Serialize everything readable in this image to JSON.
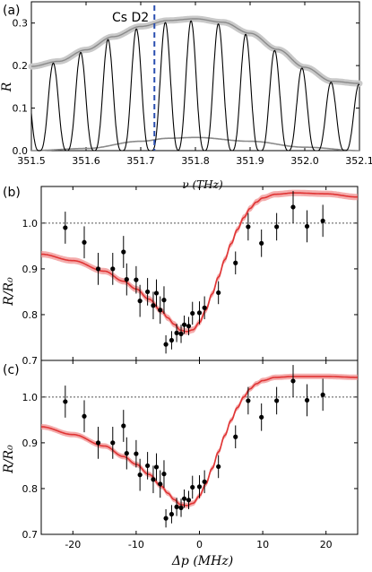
{
  "colors": {
    "axis": "#000000",
    "fringe": "#000000",
    "envelope": "#8a8a8a",
    "envelope_band": "#c9c9c9",
    "marker_line": "#2a4fb0",
    "fit_line": "#e03434",
    "fit_band": "#f08a8a",
    "points": "#000000",
    "reference_line": "#555555"
  },
  "chart_data": [
    {
      "panel_label": "(a)",
      "type": "line",
      "xlabel": "ν (THz)",
      "ylabel": "R",
      "xlim": [
        351.5,
        352.1
      ],
      "ylim": [
        0,
        0.35
      ],
      "x_ticks": [
        "351.5",
        "351.6",
        "351.7",
        "351.8",
        "351.9",
        "352.0",
        "352.1"
      ],
      "y_ticks": [
        "0.0",
        "0.1",
        "0.2",
        "0.3"
      ],
      "annotation": "Cs D2",
      "marker_x": 351.725,
      "fringe_peaks_x": [
        351.54,
        351.59,
        351.64,
        351.692,
        351.745,
        351.792,
        351.842,
        351.892,
        351.945,
        351.995,
        352.048
      ],
      "fringe_period": 0.051,
      "upper_envelope": {
        "x": [
          351.5,
          351.55,
          351.6,
          351.65,
          351.7,
          351.75,
          351.8,
          351.85,
          351.9,
          351.95,
          352.0,
          352.05,
          352.1
        ],
        "y": [
          0.198,
          0.21,
          0.237,
          0.268,
          0.292,
          0.306,
          0.31,
          0.302,
          0.276,
          0.238,
          0.196,
          0.163,
          0.158
        ]
      },
      "lower_envelope": {
        "x": [
          351.5,
          351.6,
          351.7,
          351.75,
          351.8,
          351.9,
          352.0,
          352.1
        ],
        "y": [
          0.0,
          0.005,
          0.022,
          0.029,
          0.031,
          0.022,
          0.008,
          0.0
        ]
      }
    },
    {
      "panel_label": "(b)",
      "type": "scatter",
      "xlabel": "",
      "ylabel": "R/R₀",
      "xlim": [
        -25,
        25
      ],
      "ylim": [
        0.7,
        1.08
      ],
      "x_ticks": [
        "-20",
        "-10",
        "0",
        "10",
        "20"
      ],
      "y_ticks": [
        "0.7",
        "0.8",
        "0.9",
        "1.0"
      ],
      "reference_y": 1.0,
      "points": [
        {
          "x": -21.2,
          "y": 0.99,
          "err": 0.035
        },
        {
          "x": -18.2,
          "y": 0.958,
          "err": 0.035
        },
        {
          "x": -16.0,
          "y": 0.9,
          "err": 0.035
        },
        {
          "x": -13.7,
          "y": 0.9,
          "err": 0.035
        },
        {
          "x": -12.0,
          "y": 0.937,
          "err": 0.035
        },
        {
          "x": -11.5,
          "y": 0.877,
          "err": 0.035
        },
        {
          "x": -10.0,
          "y": 0.876,
          "err": 0.03
        },
        {
          "x": -9.4,
          "y": 0.83,
          "err": 0.035
        },
        {
          "x": -8.2,
          "y": 0.85,
          "err": 0.03
        },
        {
          "x": -7.3,
          "y": 0.82,
          "err": 0.03
        },
        {
          "x": -6.8,
          "y": 0.847,
          "err": 0.03
        },
        {
          "x": -6.2,
          "y": 0.81,
          "err": 0.03
        },
        {
          "x": -5.6,
          "y": 0.832,
          "err": 0.03
        },
        {
          "x": -5.3,
          "y": 0.735,
          "err": 0.02
        },
        {
          "x": -4.4,
          "y": 0.744,
          "err": 0.02
        },
        {
          "x": -3.6,
          "y": 0.76,
          "err": 0.02
        },
        {
          "x": -2.9,
          "y": 0.758,
          "err": 0.02
        },
        {
          "x": -2.4,
          "y": 0.778,
          "err": 0.02
        },
        {
          "x": -1.7,
          "y": 0.775,
          "err": 0.02
        },
        {
          "x": -1.1,
          "y": 0.803,
          "err": 0.025
        },
        {
          "x": 0.0,
          "y": 0.804,
          "err": 0.025
        },
        {
          "x": 0.8,
          "y": 0.815,
          "err": 0.025
        },
        {
          "x": 3.0,
          "y": 0.848,
          "err": 0.025
        },
        {
          "x": 5.7,
          "y": 0.913,
          "err": 0.025
        },
        {
          "x": 7.7,
          "y": 0.992,
          "err": 0.03
        },
        {
          "x": 9.8,
          "y": 0.956,
          "err": 0.03
        },
        {
          "x": 12.2,
          "y": 0.992,
          "err": 0.03
        },
        {
          "x": 14.8,
          "y": 1.035,
          "err": 0.035
        },
        {
          "x": 17.0,
          "y": 0.993,
          "err": 0.035
        },
        {
          "x": 19.5,
          "y": 1.005,
          "err": 0.035
        }
      ],
      "fit": {
        "x": [
          -25,
          -20,
          -15,
          -12,
          -10,
          -8,
          -6,
          -5,
          -4,
          -3,
          -2,
          -1,
          0,
          1,
          2,
          3,
          4,
          5,
          6,
          7,
          8,
          9,
          10,
          12,
          15,
          20,
          25
        ],
        "y": [
          0.932,
          0.918,
          0.895,
          0.873,
          0.856,
          0.834,
          0.808,
          0.793,
          0.779,
          0.766,
          0.763,
          0.767,
          0.783,
          0.81,
          0.845,
          0.882,
          0.92,
          0.955,
          0.986,
          1.012,
          1.032,
          1.046,
          1.055,
          1.063,
          1.066,
          1.064,
          1.057
        ],
        "band": 0.007
      }
    },
    {
      "panel_label": "(c)",
      "type": "scatter",
      "xlabel": "Δp (MHz)",
      "ylabel": "R/R₀",
      "xlim": [
        -25,
        25
      ],
      "ylim": [
        0.7,
        1.08
      ],
      "x_ticks": [
        "-20",
        "-10",
        "0",
        "10",
        "20"
      ],
      "y_ticks": [
        "0.7",
        "0.8",
        "0.9",
        "1.0"
      ],
      "reference_y": 1.0,
      "points": [
        {
          "x": -21.2,
          "y": 0.99,
          "err": 0.035
        },
        {
          "x": -18.2,
          "y": 0.958,
          "err": 0.035
        },
        {
          "x": -16.0,
          "y": 0.9,
          "err": 0.035
        },
        {
          "x": -13.7,
          "y": 0.9,
          "err": 0.035
        },
        {
          "x": -12.0,
          "y": 0.937,
          "err": 0.035
        },
        {
          "x": -11.5,
          "y": 0.877,
          "err": 0.035
        },
        {
          "x": -10.0,
          "y": 0.876,
          "err": 0.03
        },
        {
          "x": -9.4,
          "y": 0.83,
          "err": 0.035
        },
        {
          "x": -8.2,
          "y": 0.85,
          "err": 0.03
        },
        {
          "x": -7.3,
          "y": 0.82,
          "err": 0.03
        },
        {
          "x": -6.8,
          "y": 0.847,
          "err": 0.03
        },
        {
          "x": -6.2,
          "y": 0.81,
          "err": 0.03
        },
        {
          "x": -5.6,
          "y": 0.832,
          "err": 0.03
        },
        {
          "x": -5.3,
          "y": 0.735,
          "err": 0.02
        },
        {
          "x": -4.4,
          "y": 0.744,
          "err": 0.02
        },
        {
          "x": -3.6,
          "y": 0.76,
          "err": 0.02
        },
        {
          "x": -2.9,
          "y": 0.758,
          "err": 0.02
        },
        {
          "x": -2.4,
          "y": 0.778,
          "err": 0.02
        },
        {
          "x": -1.7,
          "y": 0.775,
          "err": 0.02
        },
        {
          "x": -1.1,
          "y": 0.803,
          "err": 0.025
        },
        {
          "x": 0.0,
          "y": 0.804,
          "err": 0.025
        },
        {
          "x": 0.8,
          "y": 0.815,
          "err": 0.025
        },
        {
          "x": 3.0,
          "y": 0.848,
          "err": 0.025
        },
        {
          "x": 5.7,
          "y": 0.913,
          "err": 0.025
        },
        {
          "x": 7.7,
          "y": 0.992,
          "err": 0.03
        },
        {
          "x": 9.8,
          "y": 0.956,
          "err": 0.03
        },
        {
          "x": 12.2,
          "y": 0.992,
          "err": 0.03
        },
        {
          "x": 14.8,
          "y": 1.035,
          "err": 0.035
        },
        {
          "x": 17.0,
          "y": 0.993,
          "err": 0.035
        },
        {
          "x": 19.5,
          "y": 1.005,
          "err": 0.035
        }
      ],
      "fit": {
        "x": [
          -25,
          -20,
          -15,
          -12,
          -10,
          -8,
          -6,
          -5,
          -4,
          -3,
          -2,
          -1,
          0,
          1,
          2,
          3,
          4,
          5,
          6,
          7,
          8,
          9,
          10,
          12,
          15,
          20,
          25
        ],
        "y": [
          0.935,
          0.918,
          0.893,
          0.87,
          0.853,
          0.831,
          0.805,
          0.79,
          0.776,
          0.765,
          0.763,
          0.768,
          0.784,
          0.81,
          0.844,
          0.88,
          0.916,
          0.949,
          0.977,
          1.0,
          1.018,
          1.029,
          1.036,
          1.043,
          1.045,
          1.045,
          1.043
        ],
        "band": 0.006
      }
    }
  ]
}
